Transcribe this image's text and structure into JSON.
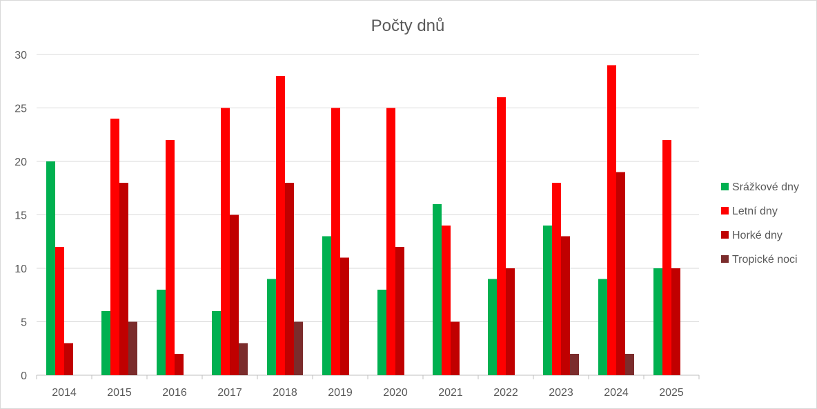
{
  "chart_data": {
    "type": "bar",
    "title": "Počty dnů",
    "xlabel": "",
    "ylabel": "",
    "categories": [
      "2014",
      "2015",
      "2016",
      "2017",
      "2018",
      "2019",
      "2020",
      "2021",
      "2022",
      "2023",
      "2024",
      "2025"
    ],
    "ylim": [
      0,
      30
    ],
    "yticks": [
      0,
      5,
      10,
      15,
      20,
      25,
      30
    ],
    "grid": true,
    "legend_position": "right",
    "series": [
      {
        "name": "Srážkové dny",
        "color": "#00b050",
        "values": [
          20,
          6,
          8,
          6,
          9,
          13,
          8,
          16,
          9,
          14,
          9,
          10
        ]
      },
      {
        "name": "Letní dny",
        "color": "#ff0000",
        "values": [
          12,
          24,
          22,
          25,
          28,
          25,
          25,
          14,
          26,
          18,
          29,
          22
        ]
      },
      {
        "name": "Horké dny",
        "color": "#c00000",
        "values": [
          3,
          18,
          2,
          15,
          18,
          11,
          12,
          5,
          10,
          13,
          19,
          10
        ]
      },
      {
        "name": "Tropické noci",
        "color": "#7b2c2c",
        "values": [
          0,
          5,
          0,
          3,
          5,
          0,
          0,
          0,
          0,
          2,
          2,
          0
        ]
      }
    ]
  }
}
